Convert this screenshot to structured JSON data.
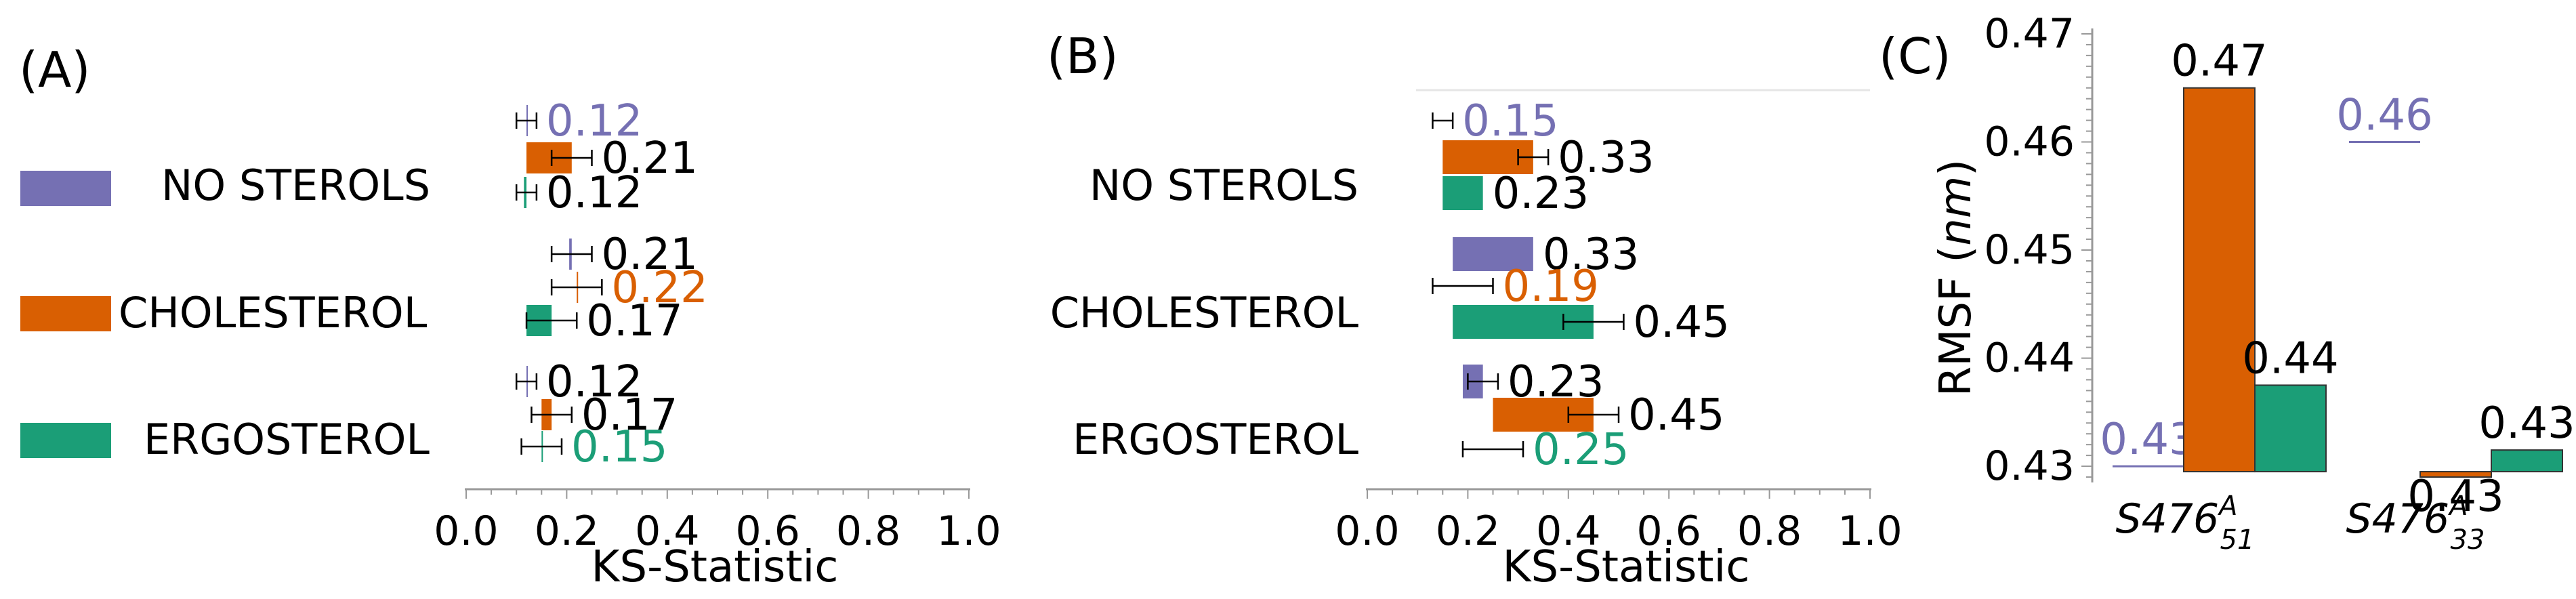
{
  "colors": {
    "no_sterols": "#7570b3",
    "cholesterol": "#d95f02",
    "ergosterol": "#1b9e77",
    "text": "#000000"
  },
  "legend": {
    "items": [
      {
        "label": "NO STEROLS",
        "color": "#7570b3"
      },
      {
        "label": "CHOLESTEROL",
        "color": "#d95f02"
      },
      {
        "label": "ERGOSTEROL",
        "color": "#1b9e77"
      }
    ]
  },
  "chart_data": [
    {
      "panel": "(A)",
      "type": "bar",
      "orientation": "horizontal",
      "xlabel": "KS-Statistic",
      "xlim": [
        0.0,
        1.0
      ],
      "xticks": [
        "0.0",
        "0.2",
        "0.4",
        "0.6",
        "0.8",
        "1.0"
      ],
      "groups": [
        {
          "name": "NO STEROLS",
          "bars": [
            {
              "series": "NO STEROLS",
              "value": 0.12,
              "err": 0.02,
              "label": "0.12",
              "label_color": "#7570b3"
            },
            {
              "series": "CHOLESTEROL",
              "value": 0.21,
              "err": 0.04,
              "label": "0.21",
              "label_color": "#000000"
            },
            {
              "series": "ERGOSTEROL",
              "value": 0.12,
              "err": 0.02,
              "label": "0.12",
              "label_color": "#000000"
            }
          ]
        },
        {
          "name": "CHOLESTEROL",
          "bars": [
            {
              "series": "NO STEROLS",
              "value": 0.21,
              "err": 0.04,
              "label": "0.21",
              "label_color": "#000000"
            },
            {
              "series": "CHOLESTEROL",
              "value": 0.22,
              "err": 0.05,
              "label": "0.22",
              "label_color": "#d95f02"
            },
            {
              "series": "ERGOSTEROL",
              "value": 0.17,
              "err": 0.05,
              "label": "0.17",
              "label_color": "#000000"
            }
          ]
        },
        {
          "name": "ERGOSTEROL",
          "bars": [
            {
              "series": "NO STEROLS",
              "value": 0.12,
              "err": 0.02,
              "label": "0.12",
              "label_color": "#000000"
            },
            {
              "series": "CHOLESTEROL",
              "value": 0.17,
              "err": 0.04,
              "label": "0.17",
              "label_color": "#000000"
            },
            {
              "series": "ERGOSTEROL",
              "value": 0.15,
              "err": 0.04,
              "label": "0.15",
              "label_color": "#1b9e77"
            }
          ]
        }
      ]
    },
    {
      "panel": "(B)",
      "type": "bar",
      "orientation": "horizontal",
      "xlabel": "KS-Statistic",
      "xlim": [
        0.0,
        1.0
      ],
      "xticks": [
        "0.0",
        "0.2",
        "0.4",
        "0.6",
        "0.8",
        "1.0"
      ],
      "groups": [
        {
          "name": "NO STEROLS",
          "bars": [
            {
              "series": "NO STEROLS",
              "value": 0.15,
              "err": 0.02,
              "label": "0.15",
              "label_color": "#7570b3"
            },
            {
              "series": "CHOLESTEROL",
              "value": 0.33,
              "err": 0.03,
              "label": "0.33",
              "label_color": "#000000"
            },
            {
              "series": "ERGOSTEROL",
              "value": 0.23,
              "err": 0.0,
              "label": "0.23",
              "label_color": "#000000"
            }
          ]
        },
        {
          "name": "CHOLESTEROL",
          "bars": [
            {
              "series": "NO STEROLS",
              "value": 0.33,
              "err": 0.0,
              "label": "0.33",
              "label_color": "#000000"
            },
            {
              "series": "CHOLESTEROL",
              "value": 0.19,
              "err": 0.06,
              "label": "0.19",
              "label_color": "#d95f02"
            },
            {
              "series": "ERGOSTEROL",
              "value": 0.45,
              "err": 0.06,
              "label": "0.45",
              "label_color": "#000000"
            }
          ]
        },
        {
          "name": "ERGOSTEROL",
          "bars": [
            {
              "series": "NO STEROLS",
              "value": 0.23,
              "err": 0.03,
              "label": "0.23",
              "label_color": "#000000"
            },
            {
              "series": "CHOLESTEROL",
              "value": 0.45,
              "err": 0.05,
              "label": "0.45",
              "label_color": "#000000"
            },
            {
              "series": "ERGOSTEROL",
              "value": 0.25,
              "err": 0.06,
              "label": "0.25",
              "label_color": "#1b9e77"
            }
          ]
        }
      ]
    },
    {
      "panel": "(C)",
      "type": "bar",
      "orientation": "vertical",
      "ylabel_prefix": "RMSF (",
      "ylabel_unit": "nm",
      "ylabel_suffix": ")",
      "ylim": [
        0.4285,
        0.4705
      ],
      "yticks": [
        {
          "value": 0.43,
          "label": "0.43"
        },
        {
          "value": 0.44,
          "label": "0.44"
        },
        {
          "value": 0.45,
          "label": "0.45"
        },
        {
          "value": 0.46,
          "label": "0.46"
        },
        {
          "value": 0.47,
          "label": "0.47"
        }
      ],
      "groups": [
        {
          "name": "S476_51^A",
          "tick_main": "S476",
          "tick_sup": "A",
          "tick_sub": "51",
          "bars": [
            {
              "series": "NO STEROLS",
              "value": 0.43,
              "label": "0.43",
              "label_color": "#7570b3"
            },
            {
              "series": "CHOLESTEROL",
              "value": 0.465,
              "label": "0.47",
              "label_color": "#000000"
            },
            {
              "series": "ERGOSTEROL",
              "value": 0.4375,
              "label": "0.44",
              "label_color": "#000000"
            }
          ]
        },
        {
          "name": "S476_33^A",
          "tick_main": "S476",
          "tick_sup": "A",
          "tick_sub": "33",
          "bars": [
            {
              "series": "NO STEROLS",
              "value": 0.46,
              "label": "0.46",
              "label_color": "#7570b3"
            },
            {
              "series": "CHOLESTEROL",
              "value": 0.429,
              "label": "0.43",
              "label_color": "#000000"
            },
            {
              "series": "ERGOSTEROL",
              "value": 0.4315,
              "label": "0.43",
              "label_color": "#000000"
            }
          ]
        }
      ]
    }
  ]
}
